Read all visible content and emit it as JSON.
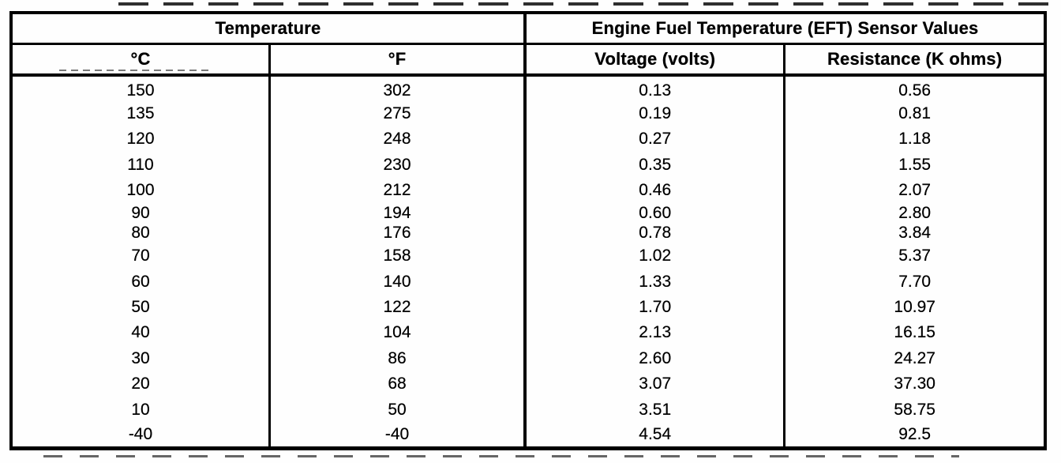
{
  "table": {
    "header_groups": [
      {
        "label": "Temperature"
      },
      {
        "label": "Engine Fuel Temperature (EFT) Sensor Values"
      }
    ],
    "columns": [
      "°C",
      "°F",
      "Voltage (volts)",
      "Resistance (K ohms)"
    ],
    "rows": [
      {
        "c": "150",
        "f": "302",
        "voltage": "0.13",
        "resistance": "0.56"
      },
      {
        "c": "135",
        "f": "275",
        "voltage": "0.19",
        "resistance": "0.81"
      },
      {
        "c": "120",
        "f": "248",
        "voltage": "0.27",
        "resistance": "1.18"
      },
      {
        "c": "110",
        "f": "230",
        "voltage": "0.35",
        "resistance": "1.55"
      },
      {
        "c": "100",
        "f": "212",
        "voltage": "0.46",
        "resistance": "2.07"
      },
      {
        "c": "90",
        "f": "194",
        "voltage": "0.60",
        "resistance": "2.80"
      },
      {
        "c": "80",
        "f": "176",
        "voltage": "0.78",
        "resistance": "3.84"
      },
      {
        "c": "70",
        "f": "158",
        "voltage": "1.02",
        "resistance": "5.37"
      },
      {
        "c": "60",
        "f": "140",
        "voltage": "1.33",
        "resistance": "7.70"
      },
      {
        "c": "50",
        "f": "122",
        "voltage": "1.70",
        "resistance": "10.97"
      },
      {
        "c": "40",
        "f": "104",
        "voltage": "2.13",
        "resistance": "16.15"
      },
      {
        "c": "30",
        "f": "86",
        "voltage": "2.60",
        "resistance": "24.27"
      },
      {
        "c": "20",
        "f": "68",
        "voltage": "3.07",
        "resistance": "37.30"
      },
      {
        "c": "10",
        "f": "50",
        "voltage": "3.51",
        "resistance": "58.75"
      },
      {
        "c": "-40",
        "f": "-40",
        "voltage": "4.54",
        "resistance": "92.5"
      }
    ],
    "ink_color": "#000000",
    "paper_color": "#fefefe"
  }
}
